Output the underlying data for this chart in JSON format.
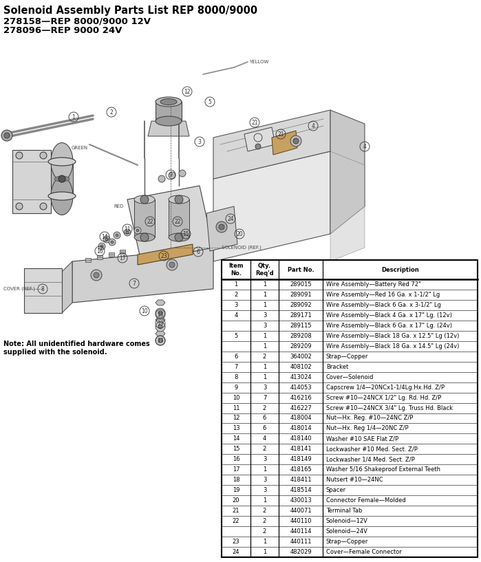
{
  "title_line1": "Solenoid Assembly Parts List REP 8000/9000",
  "title_line2": "278158—REP 8000/9000 12V",
  "title_line3": "278096—REP 9000 24V",
  "note_line1": "Note: All unidentified hardware comes",
  "note_line2": "supplied with the solenoid.",
  "table_data": [
    [
      "1",
      "1",
      "289015",
      "Wire Assembly—Battery Red 72\""
    ],
    [
      "2",
      "1",
      "289091",
      "Wire Assembly—Red 16 Ga. x 1-1/2\" Lg"
    ],
    [
      "3",
      "1",
      "289092",
      "Wire Assembly—Black 6 Ga. x 3-1/2\" Lg"
    ],
    [
      "4",
      "3",
      "289171",
      "Wire Assembly—Black 4 Ga. x 17\" Lg. (12v)"
    ],
    [
      "",
      "3",
      "289115",
      "Wire Assembly—Black 6 Ga. x 17\" Lg. (24v)"
    ],
    [
      "5",
      "1",
      "289208",
      "Wire Assembly—Black 18 Ga. x 12.5\" Lg (12v)"
    ],
    [
      "",
      "1",
      "289209",
      "Wire Assembly—Black 18 Ga. x 14.5\" Lg (24v)"
    ],
    [
      "6",
      "2",
      "364002",
      "Strap—Copper"
    ],
    [
      "7",
      "1",
      "408102",
      "Bracket"
    ],
    [
      "8",
      "1",
      "413024",
      "Cover—Solenoid"
    ],
    [
      "9",
      "3",
      "414053",
      "Capscrew 1/4—20NCx1-1/4Lg.Hx.Hd. Z/P"
    ],
    [
      "10",
      "7",
      "416216",
      "Screw #10—24NCX 1/2\" Lg. Rd. Hd. Z/P"
    ],
    [
      "11",
      "2",
      "416227",
      "Screw #10—24NCX 3/4\" Lg. Truss Hd. Black"
    ],
    [
      "12",
      "6",
      "418004",
      "Nut—Hx. Reg. #10—24NC Z/P"
    ],
    [
      "13",
      "6",
      "418014",
      "Nut—Hx. Reg 1/4—20NC Z/P"
    ],
    [
      "14",
      "4",
      "418140",
      "Washer #10 SAE Flat Z/P"
    ],
    [
      "15",
      "2",
      "418141",
      "Lockwasher #10 Med. Sect. Z/P"
    ],
    [
      "16",
      "3",
      "418149",
      "Lockwasher 1/4 Med. Sect. Z/P"
    ],
    [
      "17",
      "1",
      "418165",
      "Washer 5/16 Shakeproof External Teeth"
    ],
    [
      "18",
      "3",
      "418411",
      "Nutsert #10—24NC"
    ],
    [
      "19",
      "3",
      "418514",
      "Spacer"
    ],
    [
      "20",
      "1",
      "430013",
      "Connector Female—Molded"
    ],
    [
      "21",
      "2",
      "440071",
      "Terminal Tab"
    ],
    [
      "22",
      "2",
      "440110",
      "Solenoid—12V"
    ],
    [
      "",
      "2",
      "440114",
      "Solenoid—24V"
    ],
    [
      "23",
      "1",
      "440111",
      "Strap—Copper"
    ],
    [
      "24",
      "1",
      "482029",
      "Cover—Female Connector"
    ]
  ],
  "bg_color": "#ffffff",
  "text_color": "#000000"
}
